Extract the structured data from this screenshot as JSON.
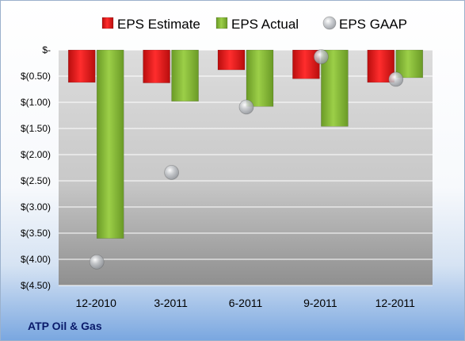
{
  "chart_data": {
    "type": "bar",
    "categories": [
      "12-2010",
      "3-2011",
      "6-2011",
      "9-2011",
      "12-2011"
    ],
    "series": [
      {
        "name": "EPS Estimate",
        "values": [
          -0.62,
          -0.63,
          -0.38,
          -0.55,
          -0.62
        ],
        "color": "#e01b1b"
      },
      {
        "name": "EPS Actual",
        "values": [
          -3.6,
          -0.98,
          -1.08,
          -1.46,
          -0.53
        ],
        "color": "#8bbf3c"
      },
      {
        "name": "EPS GAAP",
        "values": [
          -4.05,
          -2.34,
          -1.09,
          -0.13,
          -0.56
        ],
        "color": "#b9bcc0",
        "marker": "sphere"
      }
    ],
    "y_tick_labels": [
      "$-",
      "$(0.50)",
      "$(1.00)",
      "$(1.50)",
      "$(2.00)",
      "$(2.50)",
      "$(3.00)",
      "$(3.50)",
      "$(4.00)",
      "$(4.50)"
    ],
    "ylim": [
      -4.5,
      0
    ],
    "grid": true,
    "legend_position": "top"
  },
  "company_label": "ATP Oil & Gas"
}
